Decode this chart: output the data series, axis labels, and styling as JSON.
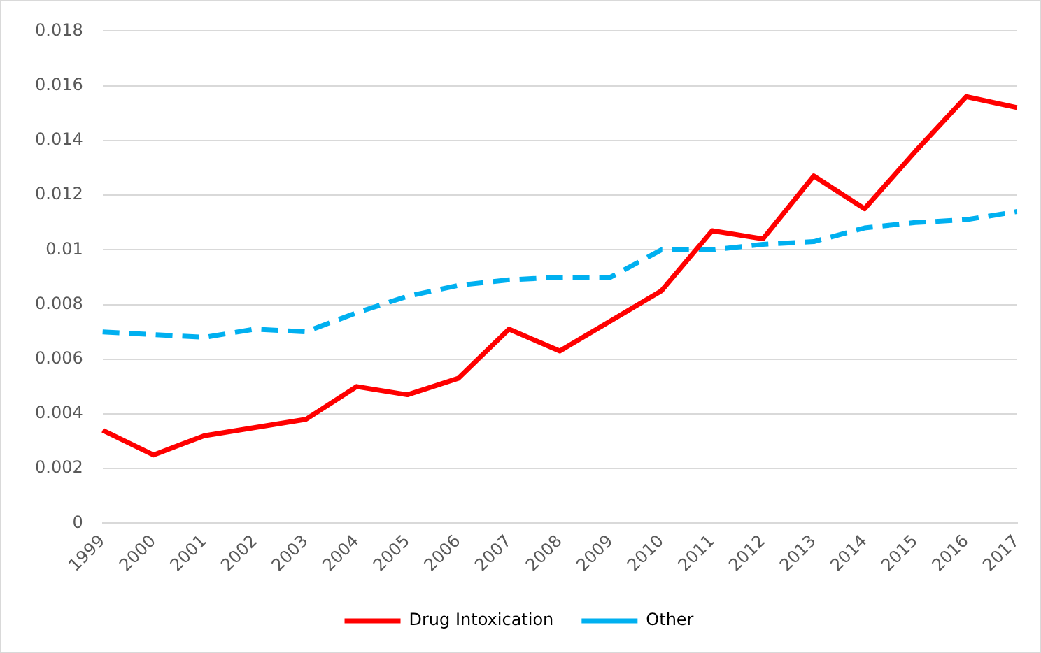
{
  "chart_data": {
    "type": "line",
    "categories": [
      "1999",
      "2000",
      "2001",
      "2002",
      "2003",
      "2004",
      "2005",
      "2006",
      "2007",
      "2008",
      "2009",
      "2010",
      "2011",
      "2012",
      "2013",
      "2014",
      "2015",
      "2016",
      "2017"
    ],
    "series": [
      {
        "name": "Drug Intoxication",
        "color": "#ff0000",
        "line_style": "solid",
        "values": [
          0.0034,
          0.0025,
          0.0032,
          0.0035,
          0.0038,
          0.005,
          0.0047,
          0.0053,
          0.0071,
          0.0063,
          0.0074,
          0.0085,
          0.0107,
          0.0104,
          0.0127,
          0.0115,
          0.0136,
          0.0156,
          0.0152
        ]
      },
      {
        "name": "Other",
        "color": "#00b0f0",
        "line_style": "dashed",
        "values": [
          0.007,
          0.0069,
          0.0068,
          0.0071,
          0.007,
          0.0077,
          0.0083,
          0.0087,
          0.0089,
          0.009,
          0.009,
          0.01,
          0.01,
          0.0102,
          0.0103,
          0.0108,
          0.011,
          0.0111,
          0.0114
        ]
      }
    ],
    "ylim": [
      0,
      0.018
    ],
    "yticks": [
      0,
      0.002,
      0.004,
      0.006,
      0.008,
      0.01,
      0.012,
      0.014,
      0.016,
      0.018
    ],
    "grid": "y",
    "legend": "bottom",
    "marker": "none"
  }
}
